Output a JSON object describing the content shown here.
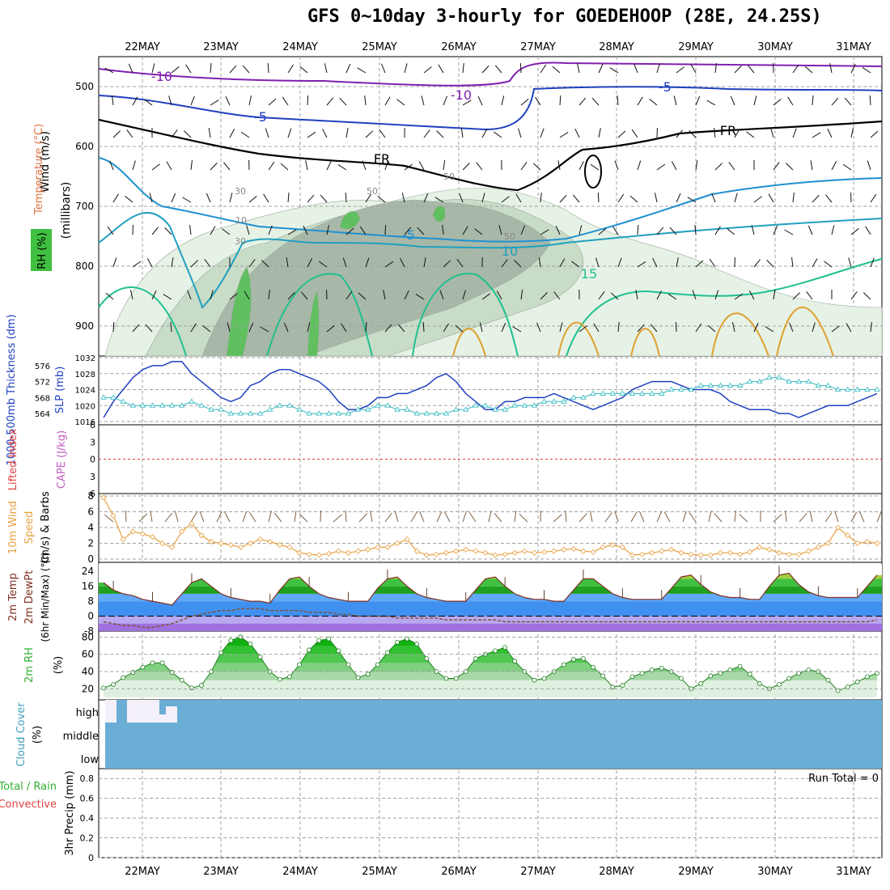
{
  "title": "GFS 0~10day 3-hourly for GOEDEHOOP (28E, 24.25S)",
  "colors": {
    "grid": "#a0a0a0",
    "wind_speed": "#e8a040",
    "slp": "#2040c0",
    "thickness": "#30b8c0",
    "lifted_zero": "#e04040",
    "rh_green": "#40c040",
    "cloud": "#6aaed6",
    "dewpoint": "#805030",
    "temp_fill": "#30b030",
    "temp_outline": "#803020"
  },
  "chart_data": [
    {
      "id": "cross_section",
      "type": "contour",
      "ylabel": "(millibars)",
      "side_labels": [
        "Wind (m/s)",
        "Temperature (°C)",
        "RH (%)"
      ],
      "x": [
        "22MAY",
        "23MAY",
        "24MAY",
        "25MAY",
        "26MAY",
        "27MAY",
        "28MAY",
        "29MAY",
        "30MAY",
        "31MAY"
      ],
      "ylim": [
        450,
        950
      ],
      "yticks": [
        500,
        600,
        700,
        800,
        900
      ],
      "contour_labels": [
        "-10",
        "-10",
        "-5",
        "-5",
        "FR",
        "FR",
        "-5",
        "10",
        "15",
        "10",
        "30",
        "50",
        "30",
        "50",
        "50"
      ]
    },
    {
      "id": "slp_thickness",
      "type": "line",
      "left_label": "1000-500mb Thickness (dm)",
      "right_label": "SLP (mb)",
      "yticks_left": [
        576,
        572,
        568,
        564
      ],
      "yticks_right": [
        1032,
        1028,
        1024,
        1020,
        1016
      ],
      "series": [
        {
          "name": "SLP (mb)",
          "values": [
            1017,
            1021,
            1024,
            1027,
            1029,
            1030,
            1030,
            1031,
            1031,
            1028,
            1026,
            1024,
            1022,
            1021,
            1022,
            1025,
            1026,
            1028,
            1029,
            1029,
            1028,
            1027,
            1026,
            1024,
            1021,
            1019,
            1019,
            1020,
            1022,
            1022,
            1023,
            1023,
            1024,
            1025,
            1027,
            1028,
            1026,
            1023,
            1021,
            1019,
            1019,
            1021,
            1021,
            1022,
            1022,
            1022,
            1023,
            1022,
            1021,
            1020,
            1019,
            1020,
            1021,
            1022,
            1024,
            1025,
            1026,
            1026,
            1026,
            1025,
            1024,
            1024,
            1024,
            1023,
            1021,
            1020,
            1019,
            1019,
            1019,
            1018,
            1018,
            1017,
            1018,
            1019,
            1020,
            1020,
            1020,
            1021,
            1022,
            1023
          ]
        },
        {
          "name": "1000-500mb Thickness (dm)",
          "values": [
            568,
            568,
            567,
            566,
            566,
            566,
            566,
            566,
            566,
            567,
            566,
            565,
            565,
            564,
            564,
            564,
            564,
            565,
            566,
            566,
            565,
            564,
            564,
            564,
            564,
            564,
            565,
            565,
            566,
            566,
            565,
            565,
            564,
            564,
            564,
            564,
            565,
            565,
            566,
            566,
            565,
            565,
            566,
            566,
            566,
            567,
            567,
            567,
            568,
            568,
            569,
            569,
            569,
            569,
            569,
            569,
            569,
            569,
            570,
            570,
            570,
            571,
            571,
            571,
            571,
            571,
            572,
            572,
            573,
            573,
            572,
            572,
            572,
            571,
            571,
            570,
            570,
            570,
            570,
            570
          ]
        }
      ]
    },
    {
      "id": "lifted_cape",
      "type": "line",
      "left_label": "Lifted Index",
      "right_label": "CAPE (J/kg)",
      "yticks": [
        -6,
        -3,
        0,
        3,
        6
      ],
      "series": [
        {
          "name": "Lifted Index",
          "values": [
            6,
            6,
            6,
            6,
            6,
            6,
            6,
            6,
            6,
            6,
            6,
            6,
            6,
            6,
            6,
            6,
            6,
            6,
            6,
            6,
            6,
            6,
            6,
            6,
            6,
            6,
            6,
            6,
            6,
            6,
            6,
            6,
            6,
            6,
            6,
            6,
            6,
            6,
            6,
            6,
            6,
            6,
            6,
            6,
            6,
            6,
            6,
            6,
            6,
            6,
            6,
            6,
            6,
            6,
            6,
            6,
            6,
            6,
            6,
            6,
            6,
            6,
            6,
            6,
            6,
            6,
            6,
            6,
            6,
            6,
            6,
            6,
            6,
            6,
            6,
            6,
            6,
            6,
            6,
            6
          ]
        }
      ]
    },
    {
      "id": "wind10m",
      "type": "line",
      "left_label": "10m Wind",
      "middle_label": "Speed",
      "right_label": "(m/s) & Barbs",
      "ylim": [
        0,
        8
      ],
      "yticks": [
        0,
        2,
        4,
        6,
        8
      ],
      "series": [
        {
          "name": "10m Wind Speed (m/s)",
          "values": [
            7.8,
            5.5,
            2.5,
            3.5,
            3.2,
            2.8,
            2.0,
            1.5,
            3.5,
            4.5,
            3.0,
            2.2,
            2.0,
            1.8,
            1.5,
            2.0,
            2.5,
            2.2,
            1.8,
            1.5,
            0.8,
            0.6,
            0.5,
            0.7,
            1.0,
            0.8,
            1.0,
            1.2,
            1.5,
            1.5,
            2.0,
            2.5,
            1.0,
            0.5,
            0.6,
            0.8,
            1.0,
            1.2,
            1.0,
            0.8,
            0.5,
            0.6,
            0.8,
            1.0,
            0.8,
            0.9,
            1.0,
            1.2,
            1.3,
            1.0,
            0.9,
            1.5,
            1.8,
            1.5,
            0.5,
            0.6,
            0.8,
            1.0,
            1.2,
            0.8,
            0.6,
            0.5,
            0.5,
            0.8,
            0.8,
            0.6,
            0.9,
            1.5,
            1.2,
            0.8,
            0.6,
            0.6,
            1.0,
            1.5,
            2.0,
            4.0,
            3.0,
            2.0,
            2.2,
            2.0
          ]
        }
      ]
    },
    {
      "id": "temp2m",
      "type": "area",
      "left_label": "2m Temp",
      "middle_label": "2m DewPt",
      "right_label": "(6hr Min/Max) (°C)",
      "ylim": [
        -8,
        28
      ],
      "yticks": [
        -8,
        0,
        8,
        16,
        24
      ],
      "series": [
        {
          "name": "2m Temp (°C)",
          "values": [
            18,
            14,
            12,
            11,
            9,
            8,
            7,
            6,
            12,
            18,
            20,
            16,
            12,
            10,
            9,
            8,
            8,
            7,
            14,
            20,
            21,
            16,
            12,
            10,
            9,
            8,
            8,
            8,
            15,
            20,
            21,
            16,
            12,
            10,
            9,
            8,
            8,
            8,
            14,
            20,
            21,
            16,
            12,
            10,
            9,
            9,
            8,
            8,
            14,
            20,
            20,
            16,
            12,
            10,
            9,
            9,
            9,
            9,
            15,
            21,
            22,
            17,
            13,
            11,
            10,
            10,
            9,
            9,
            16,
            22,
            23,
            17,
            13,
            11,
            10,
            10,
            10,
            10,
            16,
            22
          ]
        },
        {
          "name": "2m DewPt (°C)",
          "values": [
            -3,
            -4,
            -5,
            -5,
            -6,
            -6,
            -5,
            -4,
            -2,
            0,
            1,
            2,
            3,
            3,
            4,
            4,
            4,
            3,
            3,
            3,
            3,
            2,
            2,
            2,
            1,
            1,
            0,
            0,
            0,
            0,
            -1,
            -1,
            -1,
            -1,
            -1,
            -2,
            -2,
            -2,
            -2,
            -2,
            -2,
            -3,
            -3,
            -3,
            -3,
            -3,
            -3,
            -3,
            -3,
            -3,
            -3,
            -3,
            -3,
            -3,
            -3,
            -3,
            -3,
            -3,
            -3,
            -3,
            -3,
            -3,
            -3,
            -3,
            -3,
            -3,
            -3,
            -3,
            -3,
            -3,
            -3,
            -3,
            -3,
            -3,
            -3,
            -3,
            -3,
            -3,
            -3,
            -2
          ]
        }
      ]
    },
    {
      "id": "rh2m",
      "type": "area",
      "left_label": "2m RH",
      "right_label": "(%)",
      "ylim": [
        10,
        85
      ],
      "yticks": [
        20,
        40,
        60,
        80
      ],
      "series": [
        {
          "name": "2m RH (%)",
          "values": [
            21,
            25,
            33,
            39,
            45,
            50,
            50,
            39,
            30,
            21,
            24,
            40,
            62,
            76,
            80,
            72,
            57,
            40,
            31,
            34,
            48,
            65,
            76,
            78,
            64,
            48,
            33,
            37,
            48,
            62,
            74,
            78,
            72,
            55,
            40,
            32,
            32,
            40,
            55,
            60,
            64,
            68,
            52,
            40,
            30,
            32,
            40,
            48,
            54,
            55,
            45,
            35,
            22,
            24,
            34,
            38,
            42,
            44,
            40,
            32,
            20,
            26,
            35,
            38,
            42,
            46,
            37,
            26,
            20,
            25,
            32,
            38,
            42,
            40,
            30,
            18,
            22,
            28,
            34,
            38
          ]
        }
      ]
    },
    {
      "id": "cloud_cover",
      "type": "heatmap",
      "left_label": "Cloud Cover",
      "right_label": "(%)",
      "rows": [
        "high",
        "middle",
        "low"
      ],
      "note": "full overcast across period with brief clearing on 22MAY"
    },
    {
      "id": "precip3hr",
      "type": "bar",
      "left_label": "Total / Rain",
      "left_label2": "Convective",
      "ylabel": "3hr Precip (mm)",
      "ylim": [
        0,
        0.9
      ],
      "yticks": [
        0,
        0.2,
        0.4,
        0.6,
        0.8
      ],
      "run_total": "Run Total = 0",
      "values": []
    }
  ],
  "x_labels": [
    "22MAY",
    "23MAY",
    "24MAY",
    "25MAY",
    "26MAY",
    "27MAY",
    "28MAY",
    "29MAY",
    "30MAY",
    "31MAY"
  ]
}
